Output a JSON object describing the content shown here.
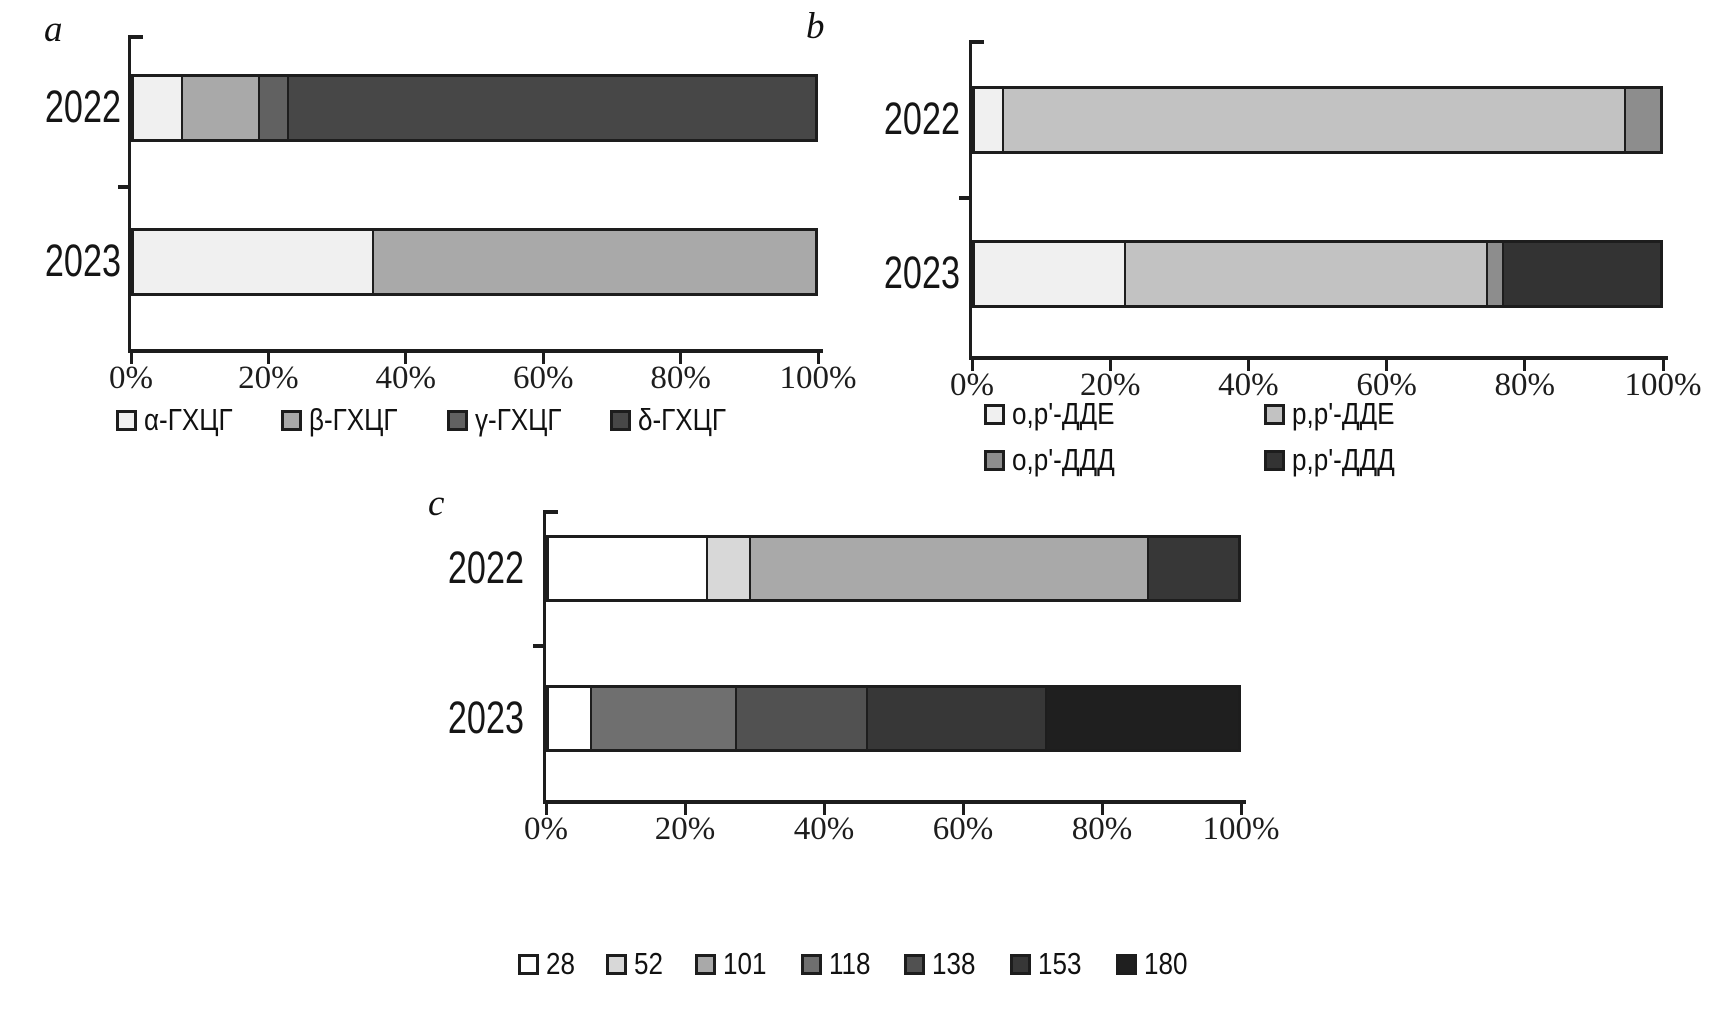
{
  "figure": {
    "background": "#ffffff",
    "axis_color": "#1d1d1d",
    "panel_labels": [
      "a",
      "b",
      "c"
    ]
  },
  "chart_data": [
    {
      "id": "a",
      "type": "bar",
      "orientation": "horizontal",
      "stacked": true,
      "panel_label": "a",
      "categories": [
        "2022",
        "2023"
      ],
      "series": [
        {
          "name": "α-ГХЦГ",
          "color": "#f0f0f0",
          "values": [
            7,
            35
          ]
        },
        {
          "name": "β-ГХЦГ",
          "color": "#a9a9a9",
          "values": [
            11,
            65
          ]
        },
        {
          "name": "γ-ГХЦГ",
          "color": "#616161",
          "values": [
            4,
            0
          ]
        },
        {
          "name": "δ-ГХЦГ",
          "color": "#474747",
          "values": [
            78,
            0
          ]
        }
      ],
      "x_ticks": [
        "0%",
        "20%",
        "40%",
        "60%",
        "80%",
        "100%"
      ],
      "xlim": [
        0,
        100
      ],
      "legend_position": "bottom-row",
      "grid": false
    },
    {
      "id": "b",
      "type": "bar",
      "orientation": "horizontal",
      "stacked": true,
      "panel_label": "b",
      "categories": [
        "2022",
        "2023"
      ],
      "series": [
        {
          "name": "o,p'-ДДЕ",
          "color": "#f0f0f0",
          "values": [
            4,
            22
          ]
        },
        {
          "name": "p,p'-ДДЕ",
          "color": "#c2c2c2",
          "values": [
            91,
            53
          ]
        },
        {
          "name": "o,p'-ДДД",
          "color": "#8d8d8d",
          "values": [
            5,
            2
          ]
        },
        {
          "name": "p,p'-ДДД",
          "color": "#333333",
          "values": [
            0,
            23
          ]
        }
      ],
      "x_ticks": [
        "0%",
        "20%",
        "40%",
        "60%",
        "80%",
        "100%"
      ],
      "xlim": [
        0,
        100
      ],
      "legend_position": "bottom-grid-2col",
      "grid": false
    },
    {
      "id": "c",
      "type": "bar",
      "orientation": "horizontal",
      "stacked": true,
      "panel_label": "c",
      "categories": [
        "2022",
        "2023"
      ],
      "series": [
        {
          "name": "28",
          "color": "#ffffff",
          "values": [
            23,
            6
          ]
        },
        {
          "name": "52",
          "color": "#d8d8d8",
          "values": [
            6,
            0
          ]
        },
        {
          "name": "101",
          "color": "#a9a9a9",
          "values": [
            58,
            0
          ]
        },
        {
          "name": "118",
          "color": "#6f6f6f",
          "values": [
            0,
            21
          ]
        },
        {
          "name": "138",
          "color": "#515151",
          "values": [
            0,
            19
          ]
        },
        {
          "name": "153",
          "color": "#373737",
          "values": [
            13,
            26
          ]
        },
        {
          "name": "180",
          "color": "#1f1f1f",
          "values": [
            0,
            28
          ]
        }
      ],
      "x_ticks": [
        "0%",
        "20%",
        "40%",
        "60%",
        "80%",
        "100%"
      ],
      "xlim": [
        0,
        100
      ],
      "legend_position": "bottom-row",
      "grid": false
    }
  ]
}
